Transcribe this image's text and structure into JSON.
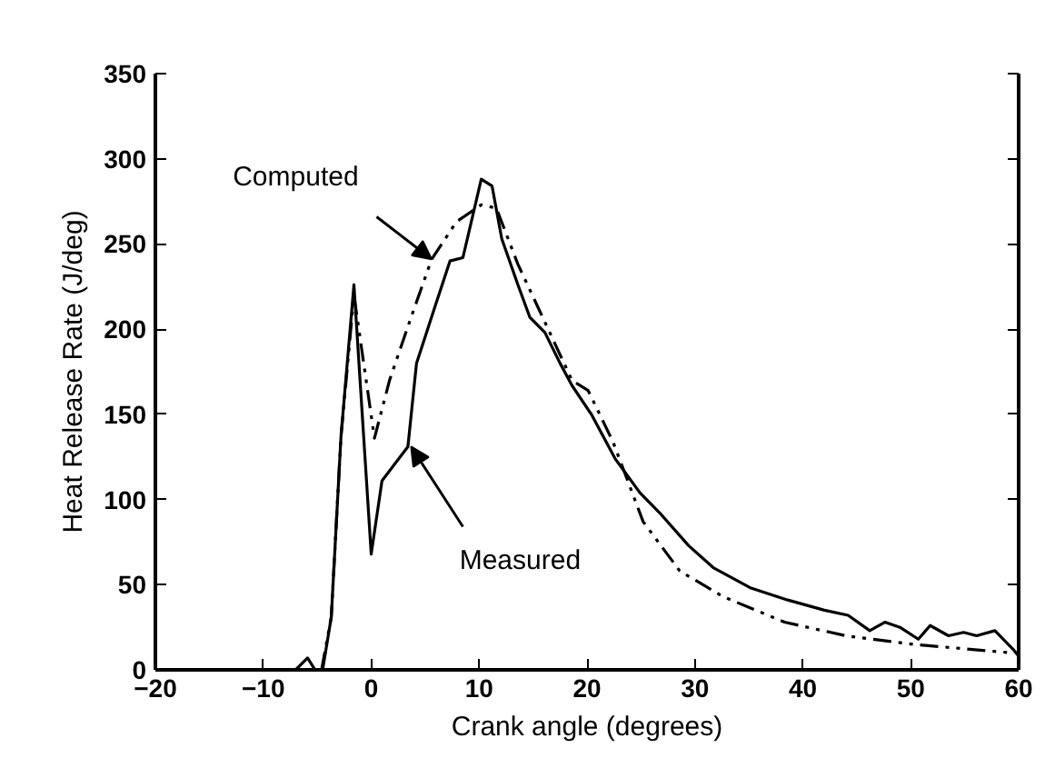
{
  "chart_data": {
    "type": "line",
    "xlabel": "Crank angle (degrees)",
    "ylabel": "Heat Release Rate (J/deg)",
    "xlim": [
      -20,
      60
    ],
    "ylim": [
      0,
      350
    ],
    "xticks": [
      -20,
      -10,
      0,
      10,
      20,
      30,
      40,
      50,
      60
    ],
    "yticks": [
      0,
      50,
      100,
      150,
      200,
      250,
      300,
      350
    ],
    "grid": false,
    "series": [
      {
        "color": "#000000",
        "line_style": "solid",
        "x": [
          -7,
          -5.9,
          -5.2,
          -4.5,
          -3.7,
          -2.8,
          -1.6,
          0,
          1.0,
          3.4,
          4.2,
          5.9,
          7.3,
          8.5,
          10.2,
          11.2,
          12.1,
          13.6,
          14.7,
          16.1,
          17.5,
          18.6,
          20.4,
          22.6,
          24.9,
          26.9,
          29.4,
          31.7,
          35.2,
          38.6,
          42.0,
          44.2,
          46.2,
          47.6,
          49.0,
          50.7,
          51.8,
          53.5,
          54.9,
          56.1,
          57.8,
          59.5,
          60
        ],
        "values": [
          0,
          7,
          0,
          0,
          31,
          137,
          226,
          68,
          111,
          131,
          180,
          213,
          240,
          242,
          288,
          284,
          253,
          226,
          207,
          198,
          180,
          167,
          150,
          124,
          104,
          91,
          73,
          60,
          48,
          41,
          35,
          32,
          23,
          28,
          25,
          18,
          26,
          20,
          22,
          20,
          23,
          12,
          8
        ]
      },
      {
        "color": "#000000",
        "line_style": "dashed",
        "x": [
          -4.6,
          -3.7,
          -2.8,
          -1.6,
          0.3,
          1.7,
          3.7,
          5.6,
          7.9,
          10.2,
          11.6,
          13.6,
          16.4,
          18.6,
          20.1,
          22.4,
          25.2,
          28.6,
          32.6,
          38.3,
          44.0,
          50.2,
          59.3
        ],
        "values": [
          0,
          31,
          137,
          220,
          136,
          170,
          207,
          241,
          263,
          273,
          271,
          238,
          200,
          170,
          164,
          134,
          87,
          58,
          43,
          28,
          20,
          15,
          10
        ]
      }
    ],
    "annotations": [
      {
        "text": "Computed",
        "x": 5.6,
        "y": 241
      },
      {
        "text": "Measured",
        "x": 3.7,
        "y": 131
      }
    ]
  }
}
